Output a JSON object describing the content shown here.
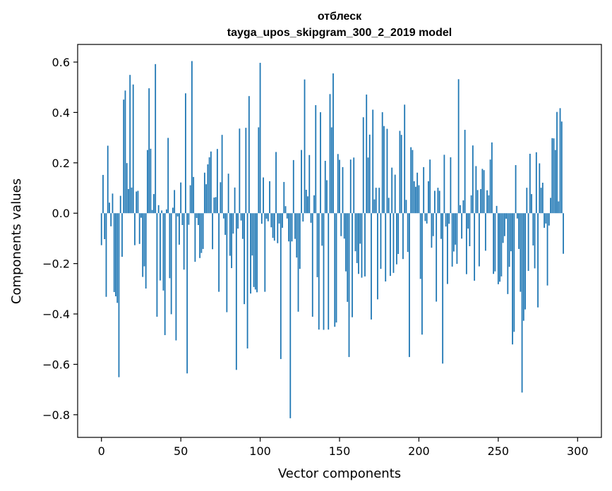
{
  "chart_data": {
    "type": "bar",
    "title": "отблеск",
    "subtitle": "tayga_upos_skipgram_300_2_2019 model",
    "xlabel": "Vector components",
    "ylabel": "Components values",
    "xlim": [
      -15,
      315
    ],
    "ylim": [
      -0.89,
      0.67
    ],
    "xticks": [
      0,
      50,
      100,
      150,
      200,
      250,
      300
    ],
    "yticks": [
      -0.8,
      -0.6,
      -0.4,
      -0.2,
      0.0,
      0.2,
      0.4,
      0.6
    ],
    "ytick_labels": [
      "−0.8",
      "−0.6",
      "−0.4",
      "−0.2",
      "0.0",
      "0.2",
      "0.4",
      "0.6"
    ],
    "grid": false,
    "bar_color": "#1f77b4",
    "values": [
      -0.127,
      0.152,
      -0.103,
      -0.332,
      0.268,
      0.042,
      -0.052,
      0.078,
      -0.313,
      -0.33,
      -0.356,
      -0.651,
      0.069,
      -0.173,
      0.451,
      0.487,
      0.199,
      0.096,
      0.549,
      0.102,
      0.511,
      -0.127,
      0.086,
      0.089,
      -0.122,
      -0.018,
      -0.253,
      -0.211,
      -0.299,
      0.251,
      0.496,
      0.256,
      0.013,
      0.076,
      0.592,
      -0.411,
      0.032,
      -0.267,
      0.011,
      -0.307,
      -0.484,
      0.015,
      0.299,
      -0.258,
      -0.401,
      0.022,
      0.092,
      -0.505,
      -0.013,
      -0.125,
      0.122,
      -0.047,
      -0.224,
      0.476,
      -0.636,
      -0.046,
      0.111,
      0.604,
      0.144,
      -0.193,
      -0.019,
      -0.047,
      -0.178,
      -0.158,
      -0.142,
      0.161,
      0.115,
      0.194,
      0.222,
      0.245,
      -0.143,
      0.062,
      0.064,
      0.255,
      -0.312,
      0.123,
      0.311,
      -0.021,
      -0.086,
      -0.393,
      0.157,
      -0.169,
      -0.218,
      -0.081,
      0.102,
      -0.622,
      -0.061,
      0.336,
      -0.029,
      -0.102,
      -0.361,
      0.339,
      -0.537,
      0.465,
      -0.319,
      -0.168,
      -0.293,
      -0.303,
      -0.314,
      0.341,
      0.597,
      -0.042,
      0.142,
      -0.312,
      -0.022,
      -0.032,
      0.127,
      -0.056,
      -0.098,
      -0.109,
      0.243,
      -0.119,
      -0.041,
      -0.579,
      -0.058,
      0.124,
      0.028,
      -0.021,
      -0.112,
      -0.814,
      -0.112,
      0.211,
      -0.102,
      -0.176,
      -0.391,
      -0.221,
      0.251,
      -0.033,
      0.531,
      0.093,
      0.067,
      0.231,
      -0.038,
      -0.411,
      0.071,
      0.429,
      -0.254,
      -0.462,
      0.401,
      -0.129,
      -0.463,
      0.208,
      0.131,
      -0.462,
      0.473,
      0.341,
      0.555,
      -0.451,
      -0.434,
      0.235,
      0.212,
      -0.091,
      0.183,
      -0.101,
      -0.231,
      -0.352,
      -0.571,
      0.213,
      -0.413,
      0.221,
      -0.151,
      -0.198,
      -0.241,
      -0.121,
      -0.256,
      0.381,
      -0.251,
      0.471,
      0.221,
      0.312,
      -0.422,
      0.411,
      0.055,
      0.101,
      -0.342,
      0.101,
      -0.221,
      0.401,
      0.346,
      -0.271,
      0.335,
      0.061,
      -0.249,
      0.181,
      -0.237,
      0.153,
      -0.203,
      -0.162,
      0.327,
      0.311,
      -0.182,
      0.431,
      0.053,
      -0.154,
      -0.571,
      0.262,
      0.251,
      0.127,
      0.105,
      0.161,
      0.111,
      -0.261,
      -0.482,
      0.183,
      -0.031,
      -0.041,
      0.127,
      0.213,
      -0.137,
      -0.091,
      0.089,
      -0.351,
      0.101,
      0.089,
      -0.102,
      -0.597,
      0.232,
      -0.053,
      -0.281,
      -0.042,
      0.222,
      -0.212,
      -0.152,
      -0.125,
      -0.201,
      0.532,
      0.032,
      -0.101,
      0.051,
      0.331,
      -0.242,
      -0.061,
      -0.131,
      0.071,
      0.269,
      -0.268,
      0.187,
      0.092,
      -0.211,
      0.096,
      0.176,
      0.171,
      -0.149,
      0.091,
      0.071,
      0.213,
      0.281,
      -0.241,
      -0.231,
      0.029,
      -0.282,
      -0.272,
      -0.251,
      -0.118,
      -0.091,
      -0.022,
      -0.321,
      -0.213,
      -0.151,
      -0.521,
      -0.471,
      0.191,
      -0.021,
      -0.142,
      -0.312,
      -0.712,
      -0.427,
      -0.382,
      0.101,
      -0.229,
      0.236,
      0.076,
      -0.128,
      -0.219,
      0.242,
      -0.374,
      0.198,
      0.101,
      0.121,
      -0.058,
      -0.041,
      -0.287,
      -0.049,
      0.061,
      0.298,
      0.297,
      0.251,
      0.402,
      0.047,
      0.417,
      0.364,
      -0.161
    ]
  }
}
